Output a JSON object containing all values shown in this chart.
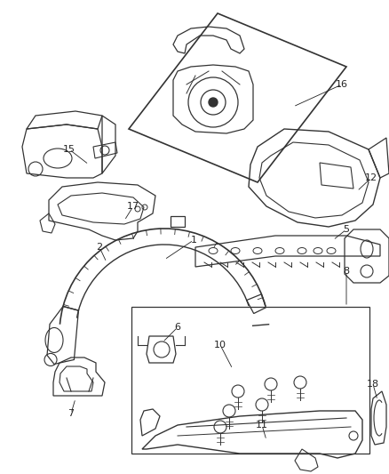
{
  "background_color": "#ffffff",
  "line_color": "#333333",
  "text_color": "#222222",
  "fig_width": 4.38,
  "fig_height": 5.33,
  "dpi": 100
}
